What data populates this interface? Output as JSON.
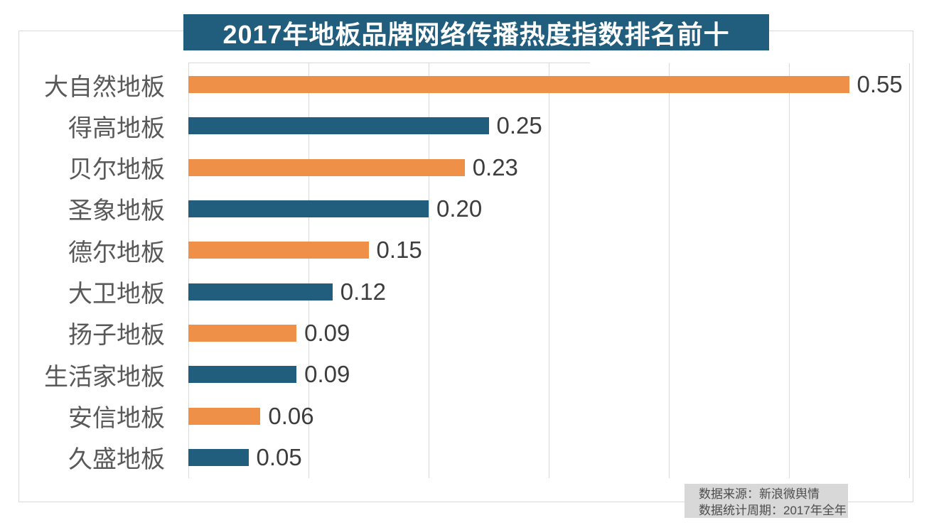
{
  "title": {
    "text": "2017年地板品牌网络传播热度指数排名前十",
    "bg_color": "#215d7d",
    "text_color": "#ffffff"
  },
  "chart_data": {
    "type": "bar",
    "orientation": "horizontal",
    "title": "2017年地板品牌网络传播热度指数排名前十",
    "categories": [
      "大自然地板",
      "得高地板",
      "贝尔地板",
      "圣象地板",
      "德尔地板",
      "大卫地板",
      "扬子地板",
      "生活家地板",
      "安信地板",
      "久盛地板"
    ],
    "values": [
      0.55,
      0.25,
      0.23,
      0.2,
      0.15,
      0.12,
      0.09,
      0.09,
      0.06,
      0.05
    ],
    "value_labels": [
      "0.55",
      "0.25",
      "0.23",
      "0.20",
      "0.15",
      "0.12",
      "0.09",
      "0.09",
      "0.06",
      "0.05"
    ],
    "xlim": [
      0,
      0.6
    ],
    "gridline_interval": 0.1,
    "grid": true,
    "legend": "none",
    "bar_colors_alternating": [
      "#ef9049",
      "#215d7d"
    ]
  },
  "footer": {
    "source_line": "数据来源：新浪微舆情",
    "period_line": "数据统计周期：2017年全年"
  },
  "colors": {
    "orange": "#ef9049",
    "blue": "#215d7d",
    "grid": "#d9d9d9",
    "frame_border": "#d9d9d9",
    "category_text": "#595959",
    "value_text": "#3d3d3d",
    "footer_bg": "#d8d8d8",
    "footer_text": "#4d4d4d"
  }
}
